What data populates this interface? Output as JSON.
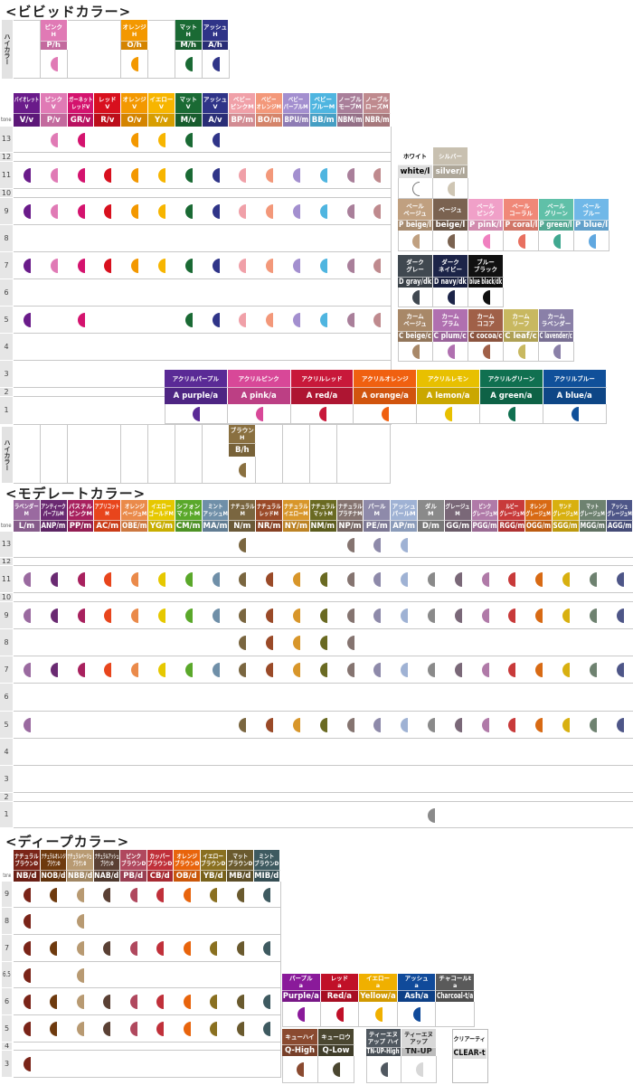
{
  "sections": {
    "vivid_title": "<ビビッドカラー>",
    "moderate_title": "<モデレートカラー>",
    "deep_title": "<ディープカラー>",
    "tone_label": "tone",
    "high_color_label": "ハイカラー"
  },
  "vivid_high": [
    null,
    {
      "jp": "ピンク\nH",
      "code": "P/h",
      "color": "#e07ab5"
    },
    null,
    null,
    {
      "jp": "オレンジ\nH",
      "code": "O/h",
      "color": "#f39800"
    },
    null,
    {
      "jp": "マット\nH",
      "code": "M/h",
      "color": "#1a6a34"
    },
    {
      "jp": "アッシュ\nH",
      "code": "A/h",
      "color": "#2f3488"
    }
  ],
  "vivid": {
    "tones": [
      "13",
      "12",
      "11",
      "10",
      "9",
      "8",
      "7",
      "6",
      "5",
      "4",
      "3",
      "2",
      "1"
    ],
    "columns": [
      {
        "jp": "バイオレット\nV",
        "code": "V/v",
        "color": "#6a1b8a",
        "tones": [
          "11",
          "9",
          "7",
          "5"
        ]
      },
      {
        "jp": "ピンク\nV",
        "code": "P/v",
        "color": "#e07ab5",
        "tones": [
          "13",
          "11",
          "9",
          "7"
        ]
      },
      {
        "jp": "ガーネット\nレッドV",
        "code": "GR/v",
        "color": "#d4136e",
        "tones": [
          "13",
          "11",
          "9",
          "7",
          "5"
        ]
      },
      {
        "jp": "レッド\nV",
        "code": "R/v",
        "color": "#d8101e",
        "tones": [
          "11",
          "9",
          "7"
        ]
      },
      {
        "jp": "オレンジ\nV",
        "code": "O/v",
        "color": "#f39800",
        "tones": [
          "13",
          "11",
          "9",
          "7"
        ]
      },
      {
        "jp": "イエロー\nV",
        "code": "Y/v",
        "color": "#f7b500",
        "tones": [
          "13",
          "11",
          "9",
          "7"
        ]
      },
      {
        "jp": "マット\nV",
        "code": "M/v",
        "color": "#1a6a34",
        "tones": [
          "13",
          "11",
          "9",
          "7",
          "5"
        ]
      },
      {
        "jp": "アッシュ\nV",
        "code": "A/v",
        "color": "#2f3488",
        "tones": [
          "13",
          "11",
          "9",
          "7",
          "5"
        ]
      },
      {
        "jp": "ベビー\nピンクM",
        "code": "BP/m",
        "color": "#f0a0a8",
        "tones": [
          "11",
          "9",
          "7",
          "5"
        ]
      },
      {
        "jp": "ベビー\nオレンジM",
        "code": "BO/m",
        "color": "#f3987a",
        "tones": [
          "11",
          "9",
          "7",
          "5"
        ]
      },
      {
        "jp": "ベビー\nパープルM",
        "code": "BPU/m",
        "color": "#a38fcf",
        "tones": [
          "11",
          "9",
          "7",
          "5"
        ]
      },
      {
        "jp": "ベビー\nブルーM",
        "code": "BB/m",
        "color": "#4fb5e0",
        "tones": [
          "11",
          "9",
          "7",
          "5"
        ]
      },
      {
        "jp": "ノーブル\nモーブM",
        "code": "NBM/m",
        "color": "#a97f9a",
        "tones": [
          "11",
          "9",
          "7",
          "5"
        ]
      },
      {
        "jp": "ノーブル\nローズM",
        "code": "NBR/m",
        "color": "#bf8a8e",
        "tones": [
          "11",
          "9",
          "7",
          "5"
        ]
      }
    ],
    "brown_high": {
      "jp": "ブラウン\nH",
      "code": "B/h",
      "color": "#8a7040"
    }
  },
  "vivid_right": {
    "light_row1": [
      {
        "jp": "ホワイト",
        "code": "white/l",
        "color": "#ffffff",
        "text": "#000000",
        "dot": "#ffffff"
      },
      {
        "jp": "シルバー",
        "code": "silver/l",
        "color": "#c8c0b0",
        "dot": "#cfc6b4"
      }
    ],
    "light_row2": [
      {
        "jp": "ペール\nベージュ",
        "code": "P beige/l",
        "color": "#c0a080"
      },
      {
        "jp": "ベージュ",
        "code": "beige/l",
        "color": "#7a6250"
      },
      {
        "jp": "ペール\nピンク",
        "code": "P pink/l",
        "color": "#f0a0c8",
        "dot": "#f080c0"
      },
      {
        "jp": "ペール\nコーラル",
        "code": "P coral/l",
        "color": "#f08878",
        "dot": "#e87060"
      },
      {
        "jp": "ペール\nグリーン",
        "code": "P green/l",
        "color": "#60c0a8",
        "dot": "#40a890"
      },
      {
        "jp": "ペール\nブルー",
        "code": "P blue/l",
        "color": "#70b8e8",
        "dot": "#60a8e0"
      }
    ],
    "dark_row": [
      {
        "jp": "ダーク\nグレー",
        "code": "D gray/dk",
        "color": "#404850"
      },
      {
        "jp": "ダーク\nネイビー",
        "code": "D navy/dk",
        "color": "#1c2448"
      },
      {
        "jp": "ブルー\nブラック",
        "code": "blue black/dk",
        "color": "#101010"
      }
    ],
    "calm_row": [
      {
        "jp": "カーム\nベージュ",
        "code": "C beige/c",
        "color": "#a88868"
      },
      {
        "jp": "カーム\nプラム",
        "code": "C plum/c",
        "color": "#b070b0"
      },
      {
        "jp": "カーム\nココア",
        "code": "C cocoa/c",
        "color": "#a06048"
      },
      {
        "jp": "カーム\nリーフ",
        "code": "C leaf/c",
        "color": "#c8b860"
      },
      {
        "jp": "カーム\nラベンダー",
        "code": "C lavender/c",
        "color": "#8a80a8"
      }
    ],
    "acrylic_row": [
      {
        "jp": "アクリルパープル",
        "code": "A purple/a",
        "color": "#5a2a96"
      },
      {
        "jp": "アクリルピンク",
        "code": "A pink/a",
        "color": "#d84898"
      },
      {
        "jp": "アクリルレッド",
        "code": "A red/a",
        "color": "#c8183a"
      },
      {
        "jp": "アクリルオレンジ",
        "code": "A orange/a",
        "color": "#f06010"
      },
      {
        "jp": "アクリルレモン",
        "code": "A lemon/a",
        "color": "#e8c000"
      },
      {
        "jp": "アクリルグリーン",
        "code": "A green/a",
        "color": "#107050"
      },
      {
        "jp": "アクリルブルー",
        "code": "A blue/a",
        "color": "#10509a"
      }
    ]
  },
  "moderate": {
    "tones": [
      "13",
      "12",
      "11",
      "10",
      "9",
      "8",
      "7",
      "6",
      "5",
      "4",
      "3",
      "2",
      "1"
    ],
    "columns": [
      {
        "jp": "ラベンダー\nM",
        "code": "L/m",
        "color": "#9a6aa0",
        "tones": [
          "11",
          "9",
          "7",
          "5"
        ]
      },
      {
        "jp": "アンティーク\nパープルM",
        "code": "ANP/m",
        "color": "#6a2a72",
        "tones": [
          "11",
          "9",
          "7"
        ]
      },
      {
        "jp": "パステル\nピンクM",
        "code": "PP/m",
        "color": "#a8215e",
        "tones": [
          "11",
          "9",
          "7"
        ]
      },
      {
        "jp": "アプリコット\nM",
        "code": "AC/m",
        "color": "#e8451c",
        "tones": [
          "11",
          "9",
          "7"
        ]
      },
      {
        "jp": "オレンジ\nベージュM",
        "code": "OBE/m",
        "color": "#ea8a4a",
        "tones": [
          "11",
          "9",
          "7"
        ]
      },
      {
        "jp": "イエロー\nゴールドM",
        "code": "YG/m",
        "color": "#e6c800",
        "tones": [
          "11",
          "9",
          "7"
        ]
      },
      {
        "jp": "シフォン\nマットM",
        "code": "CM/m",
        "color": "#5aa82a",
        "tones": [
          "11",
          "9",
          "7"
        ]
      },
      {
        "jp": "ミント\nアッシュM",
        "code": "MA/m",
        "color": "#6f8fa8",
        "tones": [
          "11",
          "9",
          "7"
        ]
      },
      {
        "jp": "ナチュラル\nM",
        "code": "N/m",
        "color": "#7a6640",
        "tones": [
          "13",
          "11",
          "9",
          "8",
          "7",
          "5"
        ]
      },
      {
        "jp": "ナチュラル\nレッドM",
        "code": "NR/m",
        "color": "#9a4a28",
        "tones": [
          "11",
          "9",
          "8",
          "7",
          "5"
        ]
      },
      {
        "jp": "ナチュラル\nイエローM",
        "code": "NY/m",
        "color": "#d8962a",
        "tones": [
          "11",
          "9",
          "8",
          "7",
          "5"
        ]
      },
      {
        "jp": "ナチュラル\nマットM",
        "code": "NM/m",
        "color": "#6a6a22",
        "tones": [
          "11",
          "9",
          "8",
          "7",
          "5"
        ]
      },
      {
        "jp": "ナチュラル\nプラチナM",
        "code": "NP/m",
        "color": "#857470",
        "tones": [
          "13",
          "11",
          "9",
          "8",
          "7",
          "5"
        ]
      },
      {
        "jp": "パール\nM",
        "code": "PE/m",
        "color": "#8e8aaa",
        "tones": [
          "13",
          "11",
          "9",
          "7",
          "5"
        ]
      },
      {
        "jp": "アッシュ\nパールM",
        "code": "AP/m",
        "color": "#9fb2d4",
        "tones": [
          "13",
          "11",
          "9",
          "7",
          "5"
        ]
      },
      {
        "jp": "ダル\nM",
        "code": "D/m",
        "color": "#8a8a8a",
        "tones": [
          "11",
          "9",
          "7",
          "5",
          "1"
        ]
      },
      {
        "jp": "グレージュ\nM",
        "code": "GG/m",
        "color": "#7a6878",
        "tones": [
          "11",
          "9",
          "7",
          "5"
        ]
      },
      {
        "jp": "ピンク\nグレージュM",
        "code": "PGG/m",
        "color": "#b07aa8",
        "tones": [
          "11",
          "9",
          "7",
          "5"
        ]
      },
      {
        "jp": "ルビー\nグレージュM",
        "code": "RGG/m",
        "color": "#c83a3a",
        "tones": [
          "11",
          "9",
          "7",
          "5"
        ]
      },
      {
        "jp": "オレンジ\nグレージュM",
        "code": "OGG/m",
        "color": "#d86a14",
        "tones": [
          "11",
          "9",
          "7",
          "5"
        ]
      },
      {
        "jp": "サンド\nグレージュM",
        "code": "SGG/m",
        "color": "#d8b010",
        "tones": [
          "11",
          "9",
          "7",
          "5"
        ]
      },
      {
        "jp": "マット\nグレージュM",
        "code": "MGG/m",
        "color": "#6e8270",
        "tones": [
          "11",
          "9",
          "7",
          "5"
        ]
      },
      {
        "jp": "アッシュ\nグレージュM",
        "code": "AGG/m",
        "color": "#4e5688",
        "tones": [
          "11",
          "9",
          "7",
          "5"
        ]
      }
    ]
  },
  "deep": {
    "tones": [
      "9",
      "8",
      "7",
      "6.5",
      "6",
      "5",
      "4",
      "3"
    ],
    "columns": [
      {
        "jp": "ナチュラル\nブラウンD",
        "code": "NB/d",
        "color": "#7a2418",
        "tones": [
          "9",
          "8",
          "7",
          "6.5",
          "6",
          "5",
          "3"
        ]
      },
      {
        "jp": "ナチュラルオレンジ\nブラウンD",
        "code": "NOB/d",
        "color": "#6e3a0e",
        "tones": [
          "9",
          "7",
          "6",
          "5"
        ]
      },
      {
        "jp": "ナチュラルベージュ\nブラウンD",
        "code": "NBB/d",
        "color": "#b89a72",
        "tones": [
          "9",
          "8",
          "7",
          "6.5",
          "6",
          "5"
        ]
      },
      {
        "jp": "ナチュラルアッシュ\nブラウンD",
        "code": "NAB/d",
        "color": "#5a4034",
        "tones": [
          "9",
          "7",
          "6",
          "5"
        ]
      },
      {
        "jp": "ピンク\nブラウンD",
        "code": "PB/d",
        "color": "#b0485e",
        "tones": [
          "9",
          "7",
          "6",
          "5"
        ]
      },
      {
        "jp": "カッパー\nブラウンD",
        "code": "CB/d",
        "color": "#c0303a",
        "tones": [
          "9",
          "7",
          "6",
          "5"
        ]
      },
      {
        "jp": "オレンジ\nブラウンD",
        "code": "OB/d",
        "color": "#e8640c",
        "tones": [
          "9",
          "7",
          "6",
          "5"
        ]
      },
      {
        "jp": "イエロー\nブラウンD",
        "code": "YB/d",
        "color": "#8a7020",
        "tones": [
          "9",
          "7",
          "6",
          "5"
        ]
      },
      {
        "jp": "マット\nブラウンD",
        "code": "MB/d",
        "color": "#6a5a2e",
        "tones": [
          "9",
          "7",
          "6",
          "5"
        ]
      },
      {
        "jp": "ミント\nブラウンD",
        "code": "MIB/d",
        "color": "#3e5a60",
        "tones": [
          "9",
          "7",
          "6",
          "5"
        ]
      }
    ],
    "additive_row": [
      {
        "jp": "パープル\na",
        "code": "Purple/a",
        "color": "#8a1a9a"
      },
      {
        "jp": "レッド\na",
        "code": "Red/a",
        "color": "#c01028"
      },
      {
        "jp": "イエロー\na",
        "code": "Yellow/a",
        "color": "#f0b000"
      },
      {
        "jp": "アッシュ\na",
        "code": "Ash/a",
        "color": "#104a9a"
      },
      {
        "jp": "チャコールt\na",
        "code": "Charcoal-t/a",
        "color": "#5a5a5a",
        "nodot": true
      }
    ],
    "q_row": [
      {
        "jp": "キューハイ",
        "code": "Q-High",
        "color": "#8a4a30"
      },
      {
        "jp": "キューロウ",
        "code": "Q-Low",
        "color": "#4a4630"
      }
    ],
    "tn_row": [
      {
        "jp": "ティーエヌ\nアップ ハイ",
        "code": "TN-UP-High",
        "color": "#505860"
      },
      {
        "jp": "ティーエヌ\nアップ",
        "code": "TN-UP",
        "color": "#d8d8d8",
        "text": "#222222"
      }
    ],
    "clear": {
      "jp": "クリアーティ",
      "code": "CLEAR-t",
      "color": "#ffffff",
      "text": "#111111",
      "nodot": true
    }
  }
}
